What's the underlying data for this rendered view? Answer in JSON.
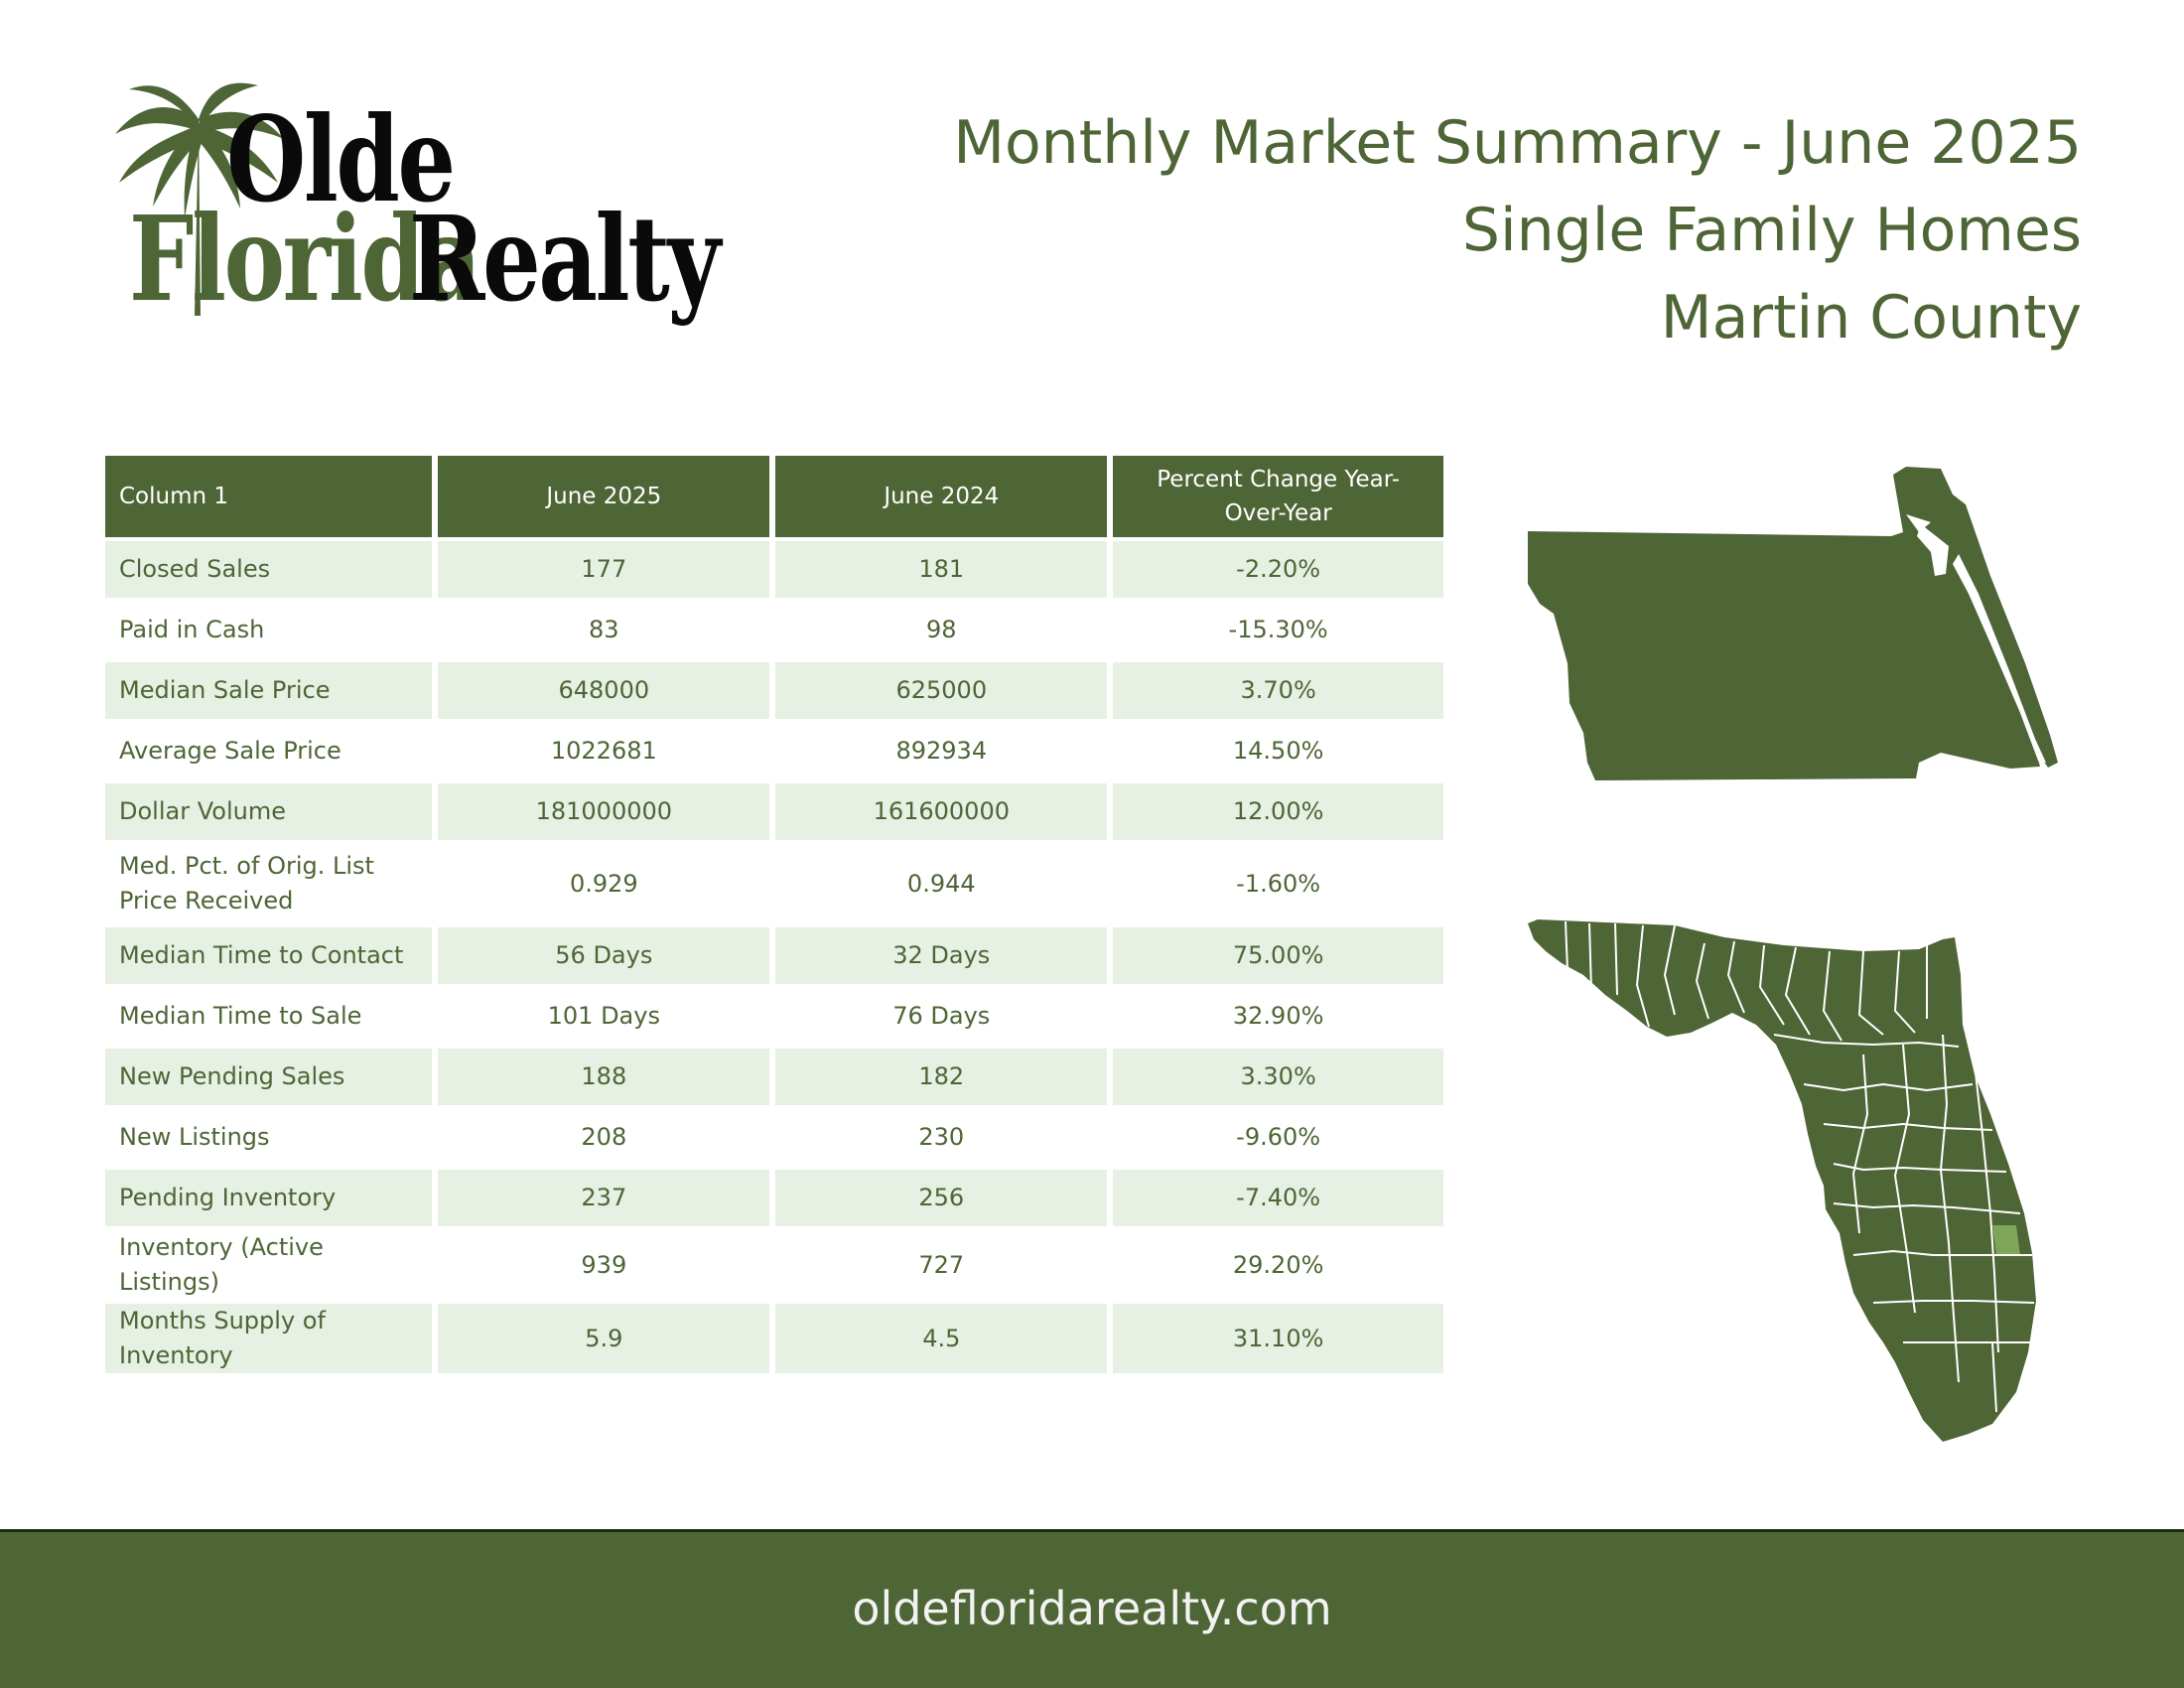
{
  "brand": {
    "logo_line1": "Olde",
    "logo_line2a": "Florida",
    "logo_line2b": "Realty",
    "website": "oldefloridarealty.com"
  },
  "header": {
    "title": "Monthly Market Summary - June 2025",
    "subtitle": "Single Family Homes",
    "region": "Martin County"
  },
  "table": {
    "columns": [
      "Column 1",
      "June 2025",
      "June 2024",
      "Percent Change Year-Over-Year"
    ],
    "rows": [
      {
        "label": "Closed Sales",
        "current": "177",
        "previous": "181",
        "change": "-2.20%"
      },
      {
        "label": "Paid in Cash",
        "current": "83",
        "previous": "98",
        "change": "-15.30%"
      },
      {
        "label": "Median Sale Price",
        "current": "648000",
        "previous": "625000",
        "change": "3.70%"
      },
      {
        "label": "Average Sale Price",
        "current": "1022681",
        "previous": "892934",
        "change": "14.50%"
      },
      {
        "label": "Dollar Volume",
        "current": "181000000",
        "previous": "161600000",
        "change": "12.00%"
      },
      {
        "label": "Med. Pct. of Orig. List Price Received",
        "current": "0.929",
        "previous": "0.944",
        "change": "-1.60%"
      },
      {
        "label": "Median Time to Contact",
        "current": "56 Days",
        "previous": "32 Days",
        "change": "75.00%"
      },
      {
        "label": "Median Time to Sale",
        "current": "101 Days",
        "previous": "76 Days",
        "change": "32.90%"
      },
      {
        "label": "New Pending Sales",
        "current": "188",
        "previous": "182",
        "change": "3.30%"
      },
      {
        "label": "New Listings",
        "current": "208",
        "previous": "230",
        "change": "-9.60%"
      },
      {
        "label": "Pending Inventory",
        "current": "237",
        "previous": "256",
        "change": "-7.40%"
      },
      {
        "label": "Inventory (Active Listings)",
        "current": "939",
        "previous": "727",
        "change": "29.20%"
      },
      {
        "label": "Months Supply of Inventory",
        "current": "5.9",
        "previous": "4.5",
        "change": "31.10%"
      }
    ]
  },
  "colors": {
    "brand_green": "#4e6536",
    "row_shade": "#e6f0e3",
    "highlight_county": "#7ea658"
  },
  "icons": {
    "logo": "palm-tree-icon",
    "county_map": "martin-county-map",
    "state_map": "florida-county-map"
  }
}
